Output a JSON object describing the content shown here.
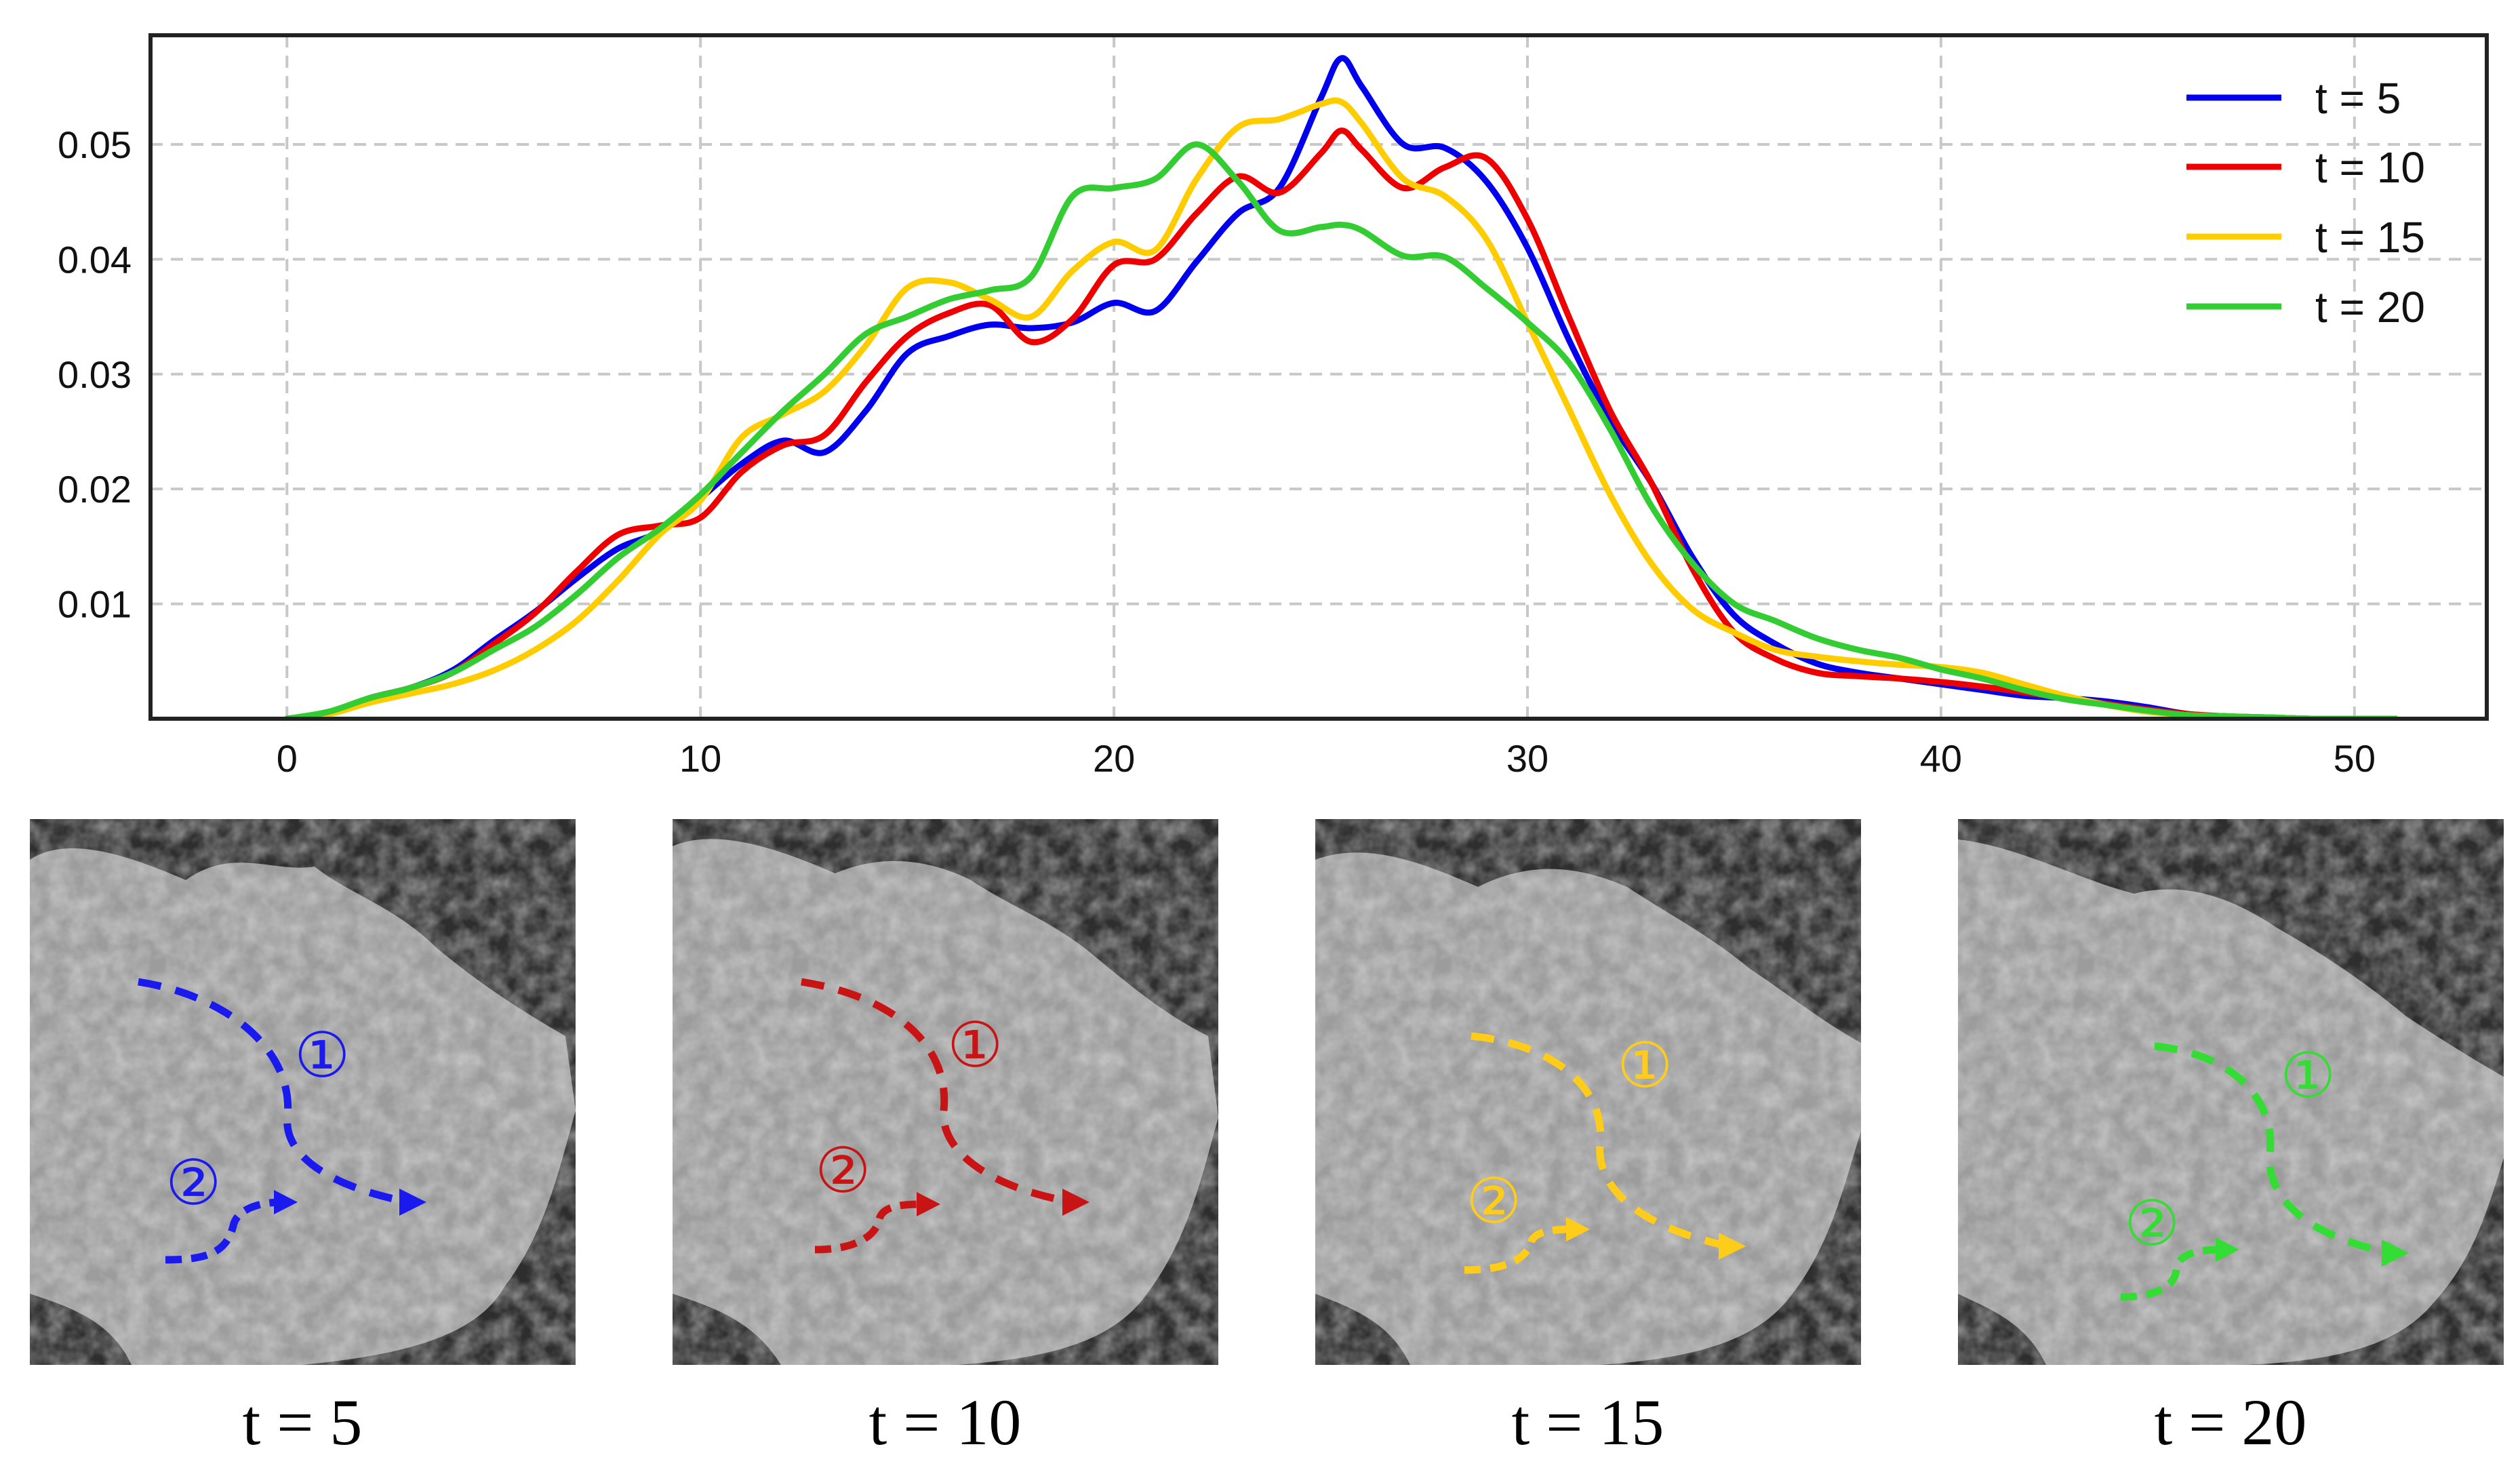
{
  "chart_data": {
    "type": "line",
    "title": "",
    "xlabel": "",
    "ylabel": "",
    "xlim": [
      -3.3,
      53.2
    ],
    "ylim": [
      0,
      0.0595
    ],
    "xticks": [
      0,
      10,
      20,
      30,
      40,
      50
    ],
    "xtick_labels": [
      "0",
      "10",
      "20",
      "30",
      "40",
      "50"
    ],
    "yticks": [
      0.01,
      0.02,
      0.03,
      0.04,
      0.05
    ],
    "ytick_labels": [
      "0.01",
      "0.02",
      "0.03",
      "0.04",
      "0.05"
    ],
    "grid": true,
    "legend_position": "top-right",
    "series": [
      {
        "name": "t = 5",
        "color": "#0000ee",
        "x": [
          0,
          1,
          2,
          3,
          4,
          5,
          6,
          7,
          8,
          9,
          10,
          11,
          12,
          13,
          14,
          15,
          16,
          17,
          18,
          19,
          20,
          21,
          22,
          23,
          24,
          25,
          25.5,
          26,
          27,
          28,
          29,
          30,
          31,
          32,
          33,
          34,
          35,
          36,
          37,
          38,
          39,
          40,
          41,
          42,
          43,
          44,
          45,
          46,
          47,
          48,
          49,
          50,
          51
        ],
        "y": [
          0,
          0.0005,
          0.0018,
          0.0027,
          0.0042,
          0.0068,
          0.0093,
          0.0122,
          0.0148,
          0.0163,
          0.0192,
          0.0222,
          0.0242,
          0.0232,
          0.0268,
          0.0318,
          0.0333,
          0.0343,
          0.034,
          0.0345,
          0.0362,
          0.0355,
          0.0398,
          0.044,
          0.0462,
          0.054,
          0.0575,
          0.055,
          0.05,
          0.0497,
          0.0468,
          0.041,
          0.033,
          0.026,
          0.0205,
          0.014,
          0.009,
          0.0065,
          0.0048,
          0.004,
          0.0035,
          0.003,
          0.0025,
          0.002,
          0.0018,
          0.0015,
          0.001,
          0.0004,
          0.0002,
          0.0001,
          0,
          0,
          0
        ]
      },
      {
        "name": "t = 10",
        "color": "#ee0000",
        "x": [
          0,
          1,
          2,
          3,
          4,
          5,
          6,
          7,
          8,
          9,
          10,
          11,
          12,
          13,
          14,
          15,
          16,
          17,
          18,
          19,
          20,
          21,
          22,
          23,
          24,
          25,
          25.5,
          26,
          27,
          28,
          29,
          30,
          31,
          32,
          33,
          34,
          35,
          36,
          37,
          38,
          39,
          40,
          41,
          42,
          43,
          44,
          45,
          46,
          47,
          48,
          49,
          50,
          51
        ],
        "y": [
          0,
          0.0005,
          0.0018,
          0.0027,
          0.004,
          0.0065,
          0.0092,
          0.0128,
          0.016,
          0.0168,
          0.0175,
          0.0215,
          0.0238,
          0.0247,
          0.0293,
          0.0333,
          0.0353,
          0.036,
          0.0328,
          0.0348,
          0.0395,
          0.04,
          0.044,
          0.0472,
          0.0458,
          0.0492,
          0.0512,
          0.0495,
          0.0462,
          0.048,
          0.0488,
          0.0435,
          0.035,
          0.0268,
          0.0205,
          0.013,
          0.0075,
          0.0052,
          0.004,
          0.0037,
          0.0035,
          0.0032,
          0.0028,
          0.0023,
          0.0018,
          0.0013,
          0.0008,
          0.0004,
          0.0002,
          0.0001,
          0,
          0,
          0
        ]
      },
      {
        "name": "t = 15",
        "color": "#ffcc00",
        "x": [
          0,
          1,
          2,
          3,
          4,
          5,
          6,
          7,
          8,
          9,
          10,
          11,
          12,
          13,
          14,
          15,
          16,
          17,
          18,
          19,
          20,
          21,
          22,
          23,
          24,
          25,
          25.5,
          26,
          27,
          28,
          29,
          30,
          31,
          32,
          33,
          34,
          35,
          36,
          37,
          38,
          39,
          40,
          41,
          42,
          43,
          44,
          45,
          46,
          47,
          48,
          49,
          50,
          51
        ],
        "y": [
          0,
          0.0004,
          0.0014,
          0.0022,
          0.003,
          0.0042,
          0.006,
          0.0085,
          0.012,
          0.016,
          0.019,
          0.0245,
          0.0265,
          0.0285,
          0.0325,
          0.0375,
          0.038,
          0.0365,
          0.035,
          0.039,
          0.0415,
          0.0408,
          0.047,
          0.0515,
          0.0522,
          0.0535,
          0.0537,
          0.0518,
          0.047,
          0.0455,
          0.0418,
          0.0345,
          0.027,
          0.0195,
          0.0135,
          0.0095,
          0.0075,
          0.006,
          0.0054,
          0.005,
          0.0047,
          0.0045,
          0.004,
          0.003,
          0.002,
          0.0012,
          0.0006,
          0.0003,
          0.0002,
          0.0001,
          0,
          0,
          0
        ]
      },
      {
        "name": "t = 20",
        "color": "#33cc33",
        "x": [
          0,
          1,
          2,
          3,
          4,
          5,
          6,
          7,
          8,
          9,
          10,
          11,
          12,
          13,
          14,
          15,
          16,
          17,
          18,
          19,
          20,
          21,
          22,
          23,
          24,
          25,
          25.5,
          26,
          27,
          28,
          29,
          30,
          31,
          32,
          33,
          34,
          35,
          36,
          37,
          38,
          39,
          40,
          41,
          42,
          43,
          44,
          45,
          46,
          47,
          48,
          49,
          50,
          51
        ],
        "y": [
          0,
          0.0006,
          0.0018,
          0.0027,
          0.004,
          0.006,
          0.008,
          0.0108,
          0.014,
          0.0165,
          0.0195,
          0.0232,
          0.0268,
          0.03,
          0.0335,
          0.035,
          0.0365,
          0.0373,
          0.0385,
          0.0455,
          0.0462,
          0.047,
          0.05,
          0.0468,
          0.0425,
          0.0428,
          0.043,
          0.0425,
          0.0403,
          0.0402,
          0.0375,
          0.0345,
          0.031,
          0.0252,
          0.0185,
          0.0135,
          0.01,
          0.0085,
          0.007,
          0.006,
          0.0053,
          0.0043,
          0.0035,
          0.0025,
          0.0017,
          0.0012,
          0.0007,
          0.0003,
          0.0002,
          0.0001,
          0,
          0,
          0
        ]
      }
    ]
  },
  "panels": [
    {
      "caption": "t = 5",
      "color": "#1a1aee",
      "marker1": "①",
      "marker2": "②"
    },
    {
      "caption": "t = 10",
      "color": "#c81414",
      "marker1": "①",
      "marker2": "②"
    },
    {
      "caption": "t = 15",
      "color": "#ffcc1a",
      "marker1": "①",
      "marker2": "②"
    },
    {
      "caption": "t = 20",
      "color": "#33dd33",
      "marker1": "①",
      "marker2": "②"
    }
  ]
}
